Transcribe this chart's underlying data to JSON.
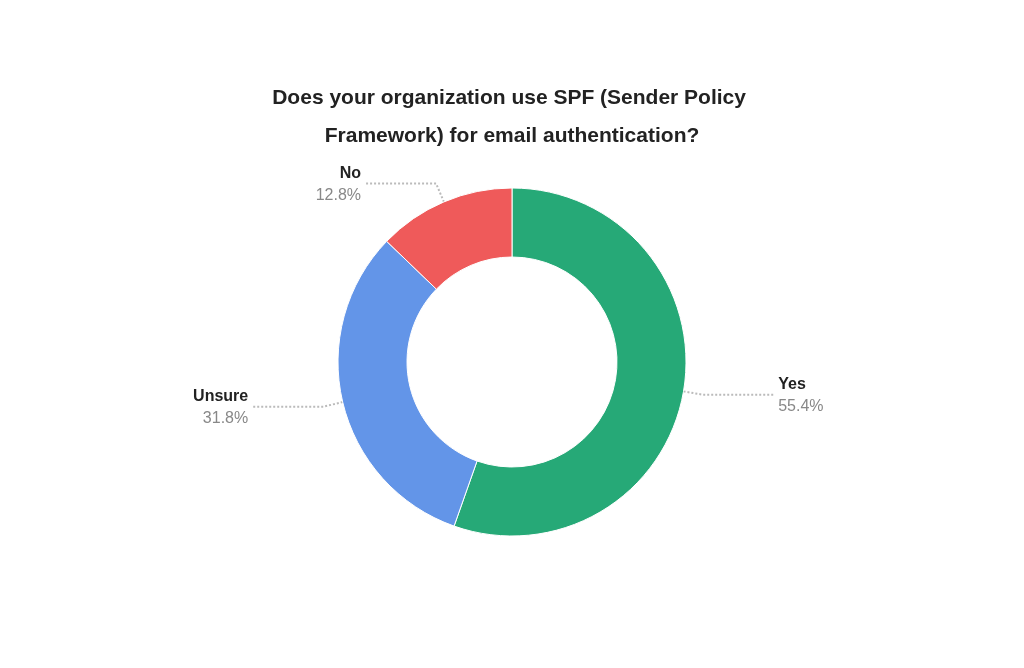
{
  "chart_data": {
    "type": "donut",
    "title": "Does your organization use SPF (Sender Policy Framework) for email authentication?",
    "categories": [
      "Yes",
      "Unsure",
      "No"
    ],
    "values": [
      55.4,
      31.8,
      12.8
    ],
    "colors": [
      "#26a977",
      "#6395e8",
      "#ef5a5a"
    ],
    "value_labels": [
      "55.4%",
      "31.8%",
      "12.8%"
    ],
    "legend": false
  }
}
